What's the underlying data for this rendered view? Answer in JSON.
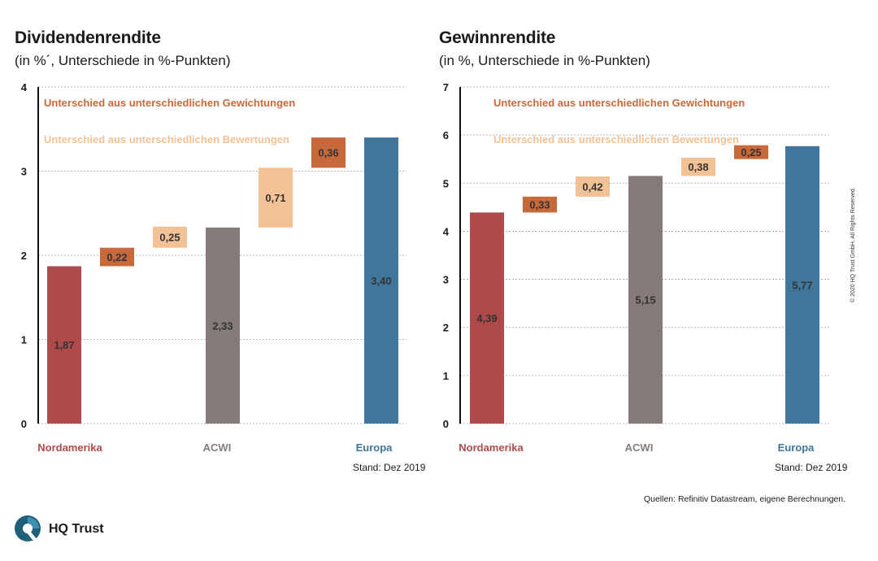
{
  "chart_data": [
    {
      "type": "bar",
      "subtype": "waterfall",
      "title": "Dividendenrendite",
      "subtitle": "(in %´, Unterschiede in %-Punkten)",
      "ylim": [
        0,
        4
      ],
      "yticks": [
        "0",
        "1",
        "2",
        "3",
        "4"
      ],
      "grid": true,
      "legend": [
        "Unterschied aus unterschiedlichen Gewichtungen",
        "Unterschied aus unterschiedlichen Bewertungen"
      ],
      "bars": [
        {
          "kind": "total",
          "category": "Nordamerika",
          "base": 0,
          "value": 1.87,
          "label": "1,87",
          "color": "#b04a4a"
        },
        {
          "kind": "weight",
          "base": 1.87,
          "value": 0.22,
          "label": "0,22",
          "color": "#c8693c"
        },
        {
          "kind": "valuation",
          "base": 2.09,
          "value": 0.25,
          "label": "0,25",
          "color": "#f2c195"
        },
        {
          "kind": "total",
          "category": "ACWI",
          "base": 0,
          "value": 2.33,
          "label": "2,33",
          "color": "#857b78"
        },
        {
          "kind": "valuation",
          "base": 2.33,
          "value": 0.71,
          "label": "0,71",
          "color": "#f2c195"
        },
        {
          "kind": "weight",
          "base": 3.04,
          "value": 0.36,
          "label": "0,36",
          "color": "#c8693c"
        },
        {
          "kind": "total",
          "category": "Europa",
          "base": 0,
          "value": 3.4,
          "label": "3,40",
          "color": "#3f7699"
        }
      ],
      "stand": "Stand: Dez 2019"
    },
    {
      "type": "bar",
      "subtype": "waterfall",
      "title": "Gewinnrendite",
      "subtitle": "(in %, Unterschiede in %-Punkten)",
      "ylim": [
        0,
        7
      ],
      "yticks": [
        "0",
        "1",
        "2",
        "3",
        "4",
        "5",
        "6",
        "7"
      ],
      "grid": true,
      "legend": [
        "Unterschied aus unterschiedlichen Gewichtungen",
        "Unterschied aus unterschiedlichen Bewertungen"
      ],
      "bars": [
        {
          "kind": "total",
          "category": "Nordamerika",
          "base": 0,
          "value": 4.39,
          "label": "4,39",
          "color": "#b04a4a"
        },
        {
          "kind": "weight",
          "base": 4.39,
          "value": 0.33,
          "label": "0,33",
          "color": "#c8693c"
        },
        {
          "kind": "valuation",
          "base": 4.72,
          "value": 0.42,
          "label": "0,42",
          "color": "#f2c195"
        },
        {
          "kind": "total",
          "category": "ACWI",
          "base": 0,
          "value": 5.15,
          "label": "5,15",
          "color": "#857b78"
        },
        {
          "kind": "valuation",
          "base": 5.15,
          "value": 0.38,
          "label": "0,38",
          "color": "#f2c195"
        },
        {
          "kind": "weight",
          "base": 5.52,
          "value": 0.25,
          "label": "0,25",
          "color": "#c8693c"
        },
        {
          "kind": "total",
          "category": "Europa",
          "base": 0,
          "value": 5.77,
          "label": "5,77",
          "color": "#3f7699"
        }
      ],
      "stand": "Stand: Dez 2019"
    }
  ],
  "colors": {
    "legend_weight": "#c8693c",
    "legend_valuation": "#f2c195",
    "nordamerika": "#b04a4a",
    "acwi": "#857b78",
    "europa": "#3f7699"
  },
  "footer": {
    "sources": "Quellen: Refinitiv Datastream, eigene Berechnungen.",
    "copyright": "© 2020 HQ Trust GmbH. All Rights Reserved.",
    "logo": "HQ Trust"
  }
}
